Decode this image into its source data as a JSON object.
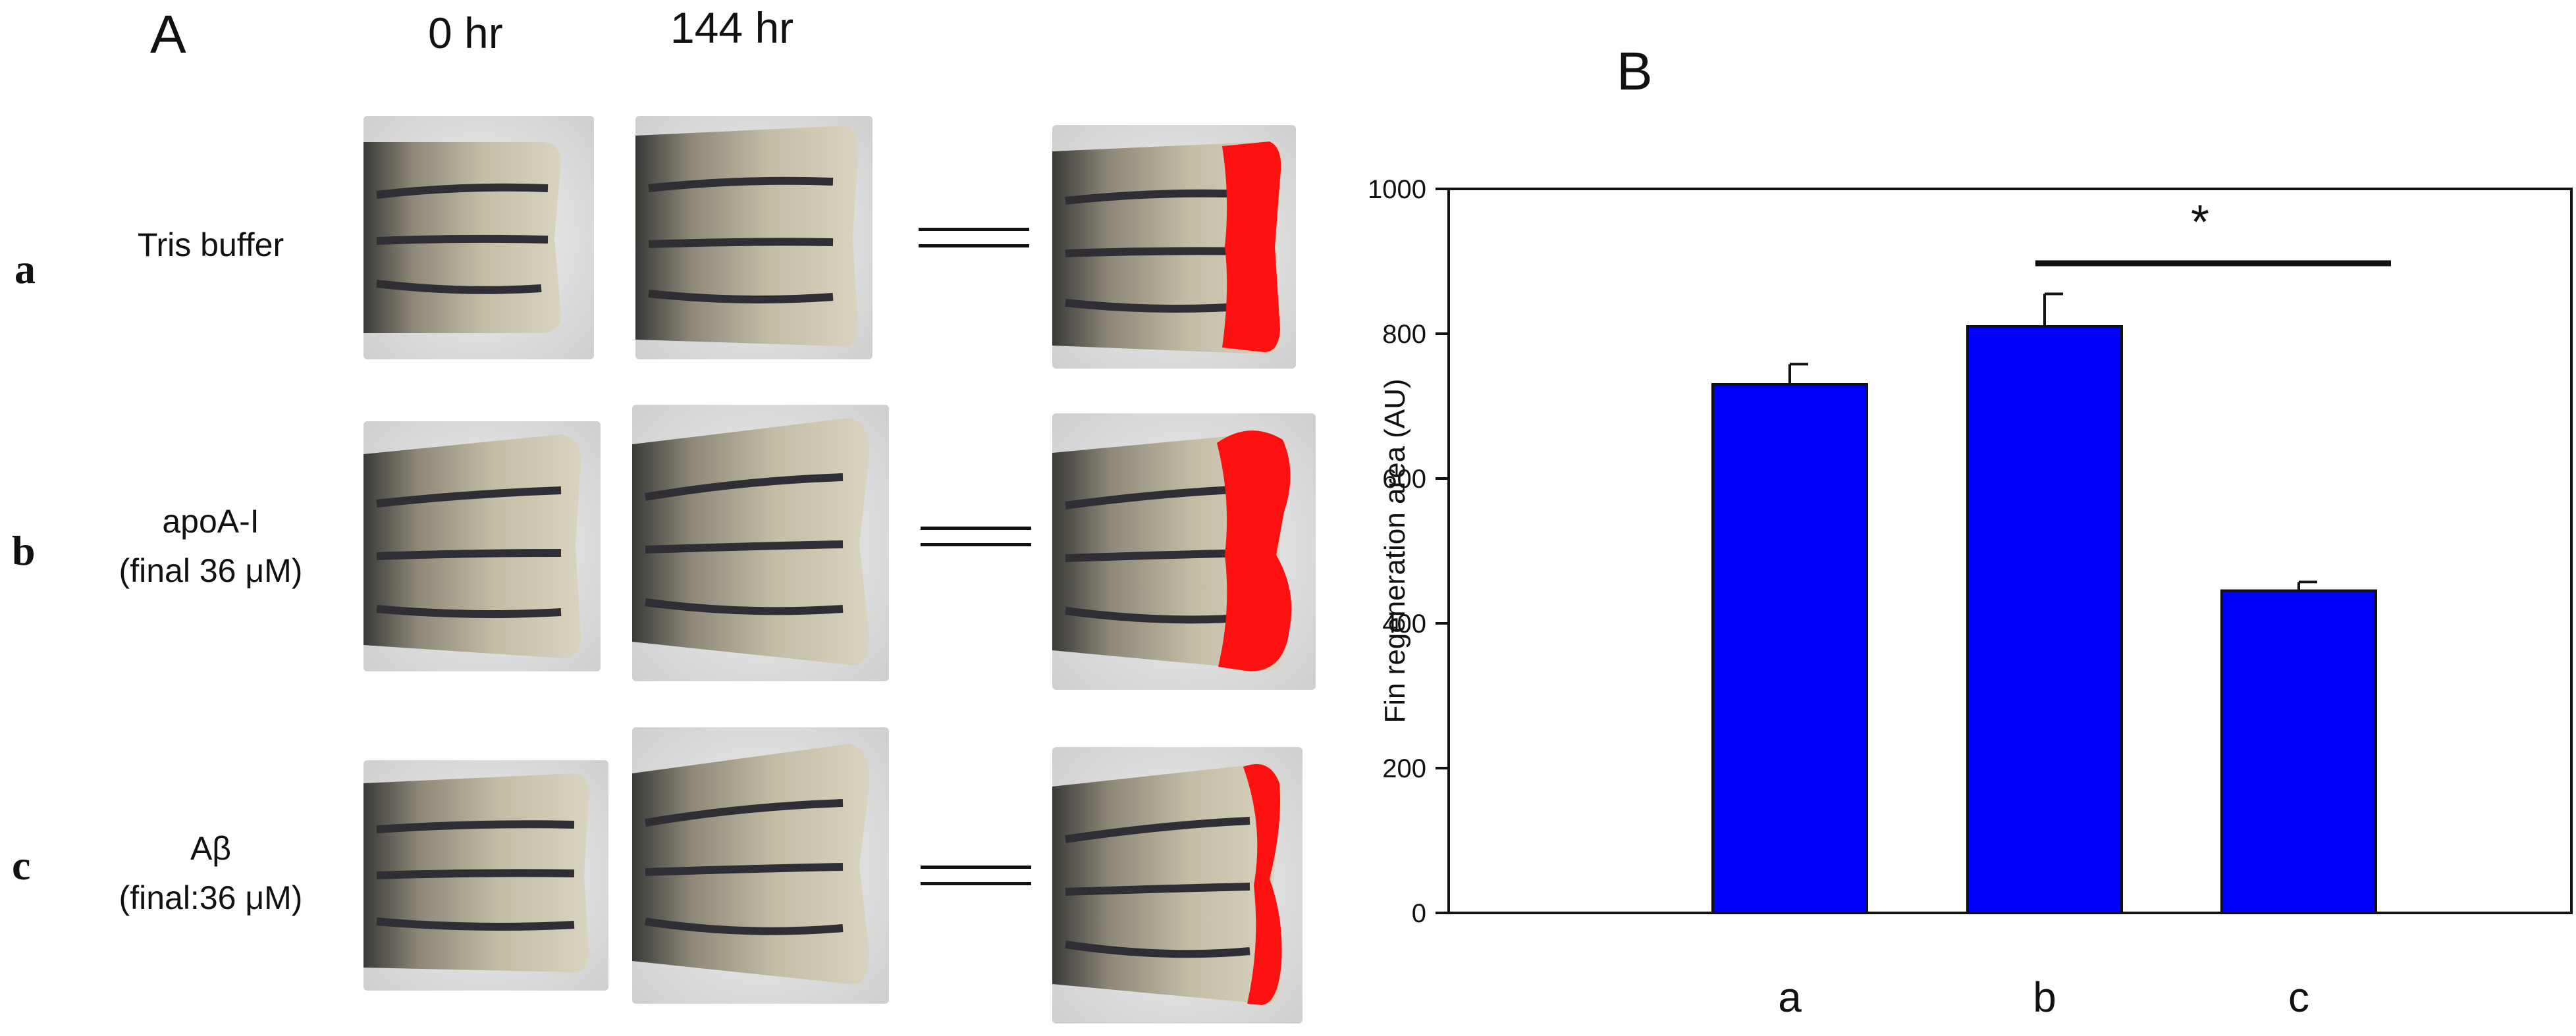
{
  "panel_a": {
    "label": "A",
    "columns": [
      "0 hr",
      "144 hr"
    ],
    "rows": [
      {
        "letter": "a",
        "condition_line1": "Tris buffer",
        "condition_line2": ""
      },
      {
        "letter": "b",
        "condition_line1": "apoA-I",
        "condition_line2": "(final 36 μM)"
      },
      {
        "letter": "c",
        "condition_line1": "Aβ",
        "condition_line2": "(final:36 μM)"
      }
    ],
    "colors": {
      "regeneration_highlight": "#ff1010",
      "fin_tissue": "#b9b39c",
      "fin_stripe": "#2e2e34",
      "background_gel": "#dedede"
    }
  },
  "panel_b": {
    "label": "B"
  },
  "chart_data": {
    "type": "bar",
    "categories": [
      "a",
      "b",
      "c"
    ],
    "values": [
      730,
      810,
      445
    ],
    "errors": [
      28,
      45,
      12
    ],
    "xlabel": "",
    "ylabel": "Fin regeneration area (AU)",
    "ylim": [
      0,
      1000
    ],
    "yticks": [
      0,
      200,
      400,
      600,
      800,
      1000
    ],
    "bar_color": "#0000ff",
    "significance": {
      "from": "b",
      "to": "c",
      "label": "*"
    },
    "grid": false,
    "legend": "none"
  }
}
